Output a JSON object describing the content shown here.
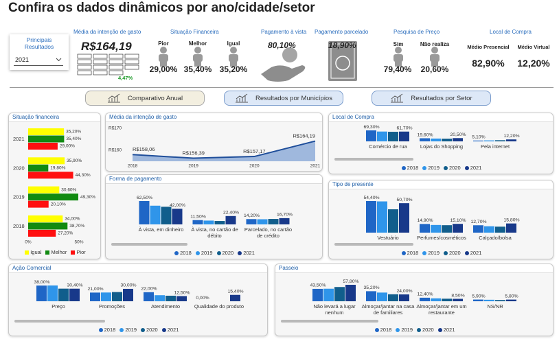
{
  "header": {
    "title": "Confira os dados dinâmicos por ano/cidade/setor"
  },
  "filter": {
    "label": "Principais Resultados",
    "value": "2021"
  },
  "kpis": {
    "gasto": {
      "title": "Média da intenção de gasto",
      "value": "R$164,19",
      "change": "4,47%"
    },
    "situacao": {
      "title": "Situação Financeira",
      "items": [
        {
          "label": "Pior",
          "value": "29,00%"
        },
        {
          "label": "Melhor",
          "value": "35,40%"
        },
        {
          "label": "Igual",
          "value": "35,20%"
        }
      ]
    },
    "avista": {
      "title": "Pagamento à vista",
      "value": "80,10%"
    },
    "parcelado": {
      "title": "Pagamento parcelado",
      "value": "18,90%"
    },
    "pesquisa": {
      "title": "Pesquisa de Preço",
      "items": [
        {
          "label": "Sim",
          "value": "79,40%"
        },
        {
          "label": "Não realiza",
          "value": "20,60%"
        }
      ]
    },
    "local": {
      "title": "Local de Compra",
      "items": [
        {
          "label": "Médio Presencial",
          "value": "82,90%"
        },
        {
          "label": "Médio Virtual",
          "value": "12,20%"
        }
      ]
    }
  },
  "tabs": [
    "Comparativo Anual",
    "Resultados por Municípios",
    "Resultados por Setor"
  ],
  "chart_data": [
    {
      "type": "hbar",
      "title": "Situação financeira",
      "categories": [
        "2021",
        "2020",
        "2019",
        "2018"
      ],
      "series": [
        {
          "name": "Igual",
          "color": "#ffff00",
          "values": [
            35.2,
            35.9,
            30.6,
            34.0
          ],
          "value_labels": [
            "35,20%",
            "35,90%",
            "30,60%",
            "34,00%"
          ]
        },
        {
          "name": "Melhor",
          "color": "#118a11",
          "values": [
            35.4,
            19.8,
            49.3,
            38.7
          ],
          "value_labels": [
            "35,40%",
            "19,80%",
            "49,30%",
            "38,70%"
          ]
        },
        {
          "name": "Pior",
          "color": "#ff1010",
          "values": [
            29.0,
            44.3,
            20.1,
            27.2
          ],
          "value_labels": [
            "29,00%",
            "44,30%",
            "20,10%",
            "27,20%"
          ]
        }
      ],
      "xlim": [
        0,
        50
      ],
      "xticks": [
        {
          "value": 0,
          "label": "0%"
        },
        {
          "value": 50,
          "label": "50%"
        }
      ],
      "legend": "bottom"
    },
    {
      "type": "area",
      "title": "Média da intenção de gasto",
      "categories": [
        "2018",
        "2019",
        "2020",
        "2021"
      ],
      "values": [
        158.06,
        156.39,
        157.17,
        164.19
      ],
      "value_labels": [
        "R$158,06",
        "R$156,39",
        "R$157,17",
        "R$164,19"
      ],
      "ylim": [
        155,
        170
      ],
      "yticks": [
        {
          "value": 160,
          "label": "R$160"
        },
        {
          "value": 170,
          "label": "R$170"
        }
      ],
      "color": "#1f4e9a"
    },
    {
      "type": "bar",
      "title": "Forma de pagamento",
      "categories": [
        "À vista, em dinheiro",
        "À vista, no cartão de débito",
        "Parcelado, no cartão de crédito"
      ],
      "series": [
        {
          "name": "2018",
          "color": "#1f66c6",
          "values": [
            62.5,
            11.5,
            14.2
          ],
          "value_labels": [
            "62,50%",
            "11,50%",
            "14,20%"
          ]
        },
        {
          "name": "2019",
          "color": "#2f95ea",
          "values": [
            50.1,
            10.2,
            13.8
          ]
        },
        {
          "name": "2020",
          "color": "#115e8c",
          "values": [
            47.3,
            9.1,
            14.6
          ]
        },
        {
          "name": "2021",
          "color": "#18398a",
          "values": [
            42.0,
            22.4,
            16.7
          ],
          "value_labels": [
            "42,00%",
            "22,40%",
            "16,70%"
          ]
        }
      ],
      "legend": "bottom"
    },
    {
      "type": "bar",
      "title": "Local de Compra",
      "categories": [
        "Comércio de rua",
        "Lojas do Shopping",
        "Pela internet"
      ],
      "series": [
        {
          "name": "2018",
          "color": "#1f66c6",
          "values": [
            69.3,
            19.6,
            5.1
          ],
          "value_labels": [
            "69,30%",
            "19,60%",
            "5,10%"
          ]
        },
        {
          "name": "2019",
          "color": "#2f95ea",
          "values": [
            62.0,
            17.8,
            6.0
          ]
        },
        {
          "name": "2020",
          "color": "#115e8c",
          "values": [
            60.5,
            17.0,
            7.2
          ]
        },
        {
          "name": "2021",
          "color": "#18398a",
          "values": [
            61.7,
            20.5,
            12.2
          ],
          "value_labels": [
            "61,70%",
            "20,50%",
            "12,20%"
          ]
        }
      ],
      "legend": "bottom"
    },
    {
      "type": "bar",
      "title": "Tipo de presente",
      "categories": [
        "Vestuário",
        "Perfumes/cosméticos",
        "Calçado/bolsa"
      ],
      "series": [
        {
          "name": "2018",
          "color": "#1f66c6",
          "values": [
            54.4,
            14.9,
            12.7
          ],
          "value_labels": [
            "54,40%",
            "14,90%",
            "12,70%"
          ]
        },
        {
          "name": "2019",
          "color": "#2f95ea",
          "values": [
            53.8,
            13.2,
            11.0
          ]
        },
        {
          "name": "2020",
          "color": "#115e8c",
          "values": [
            40.2,
            12.8,
            10.3
          ]
        },
        {
          "name": "2021",
          "color": "#18398a",
          "values": [
            50.7,
            15.1,
            15.8
          ],
          "value_labels": [
            "50,70%",
            "15,10%",
            "15,80%"
          ]
        }
      ],
      "legend": "bottom"
    },
    {
      "type": "bar",
      "title": "Ação Comercial",
      "categories": [
        "Preço",
        "Promoções",
        "Atendimento",
        "Qualidade do produto"
      ],
      "series": [
        {
          "name": "2018",
          "color": "#1f66c6",
          "values": [
            38.0,
            21.0,
            22.0,
            0.0
          ],
          "value_labels": [
            "38,00%",
            "21,00%",
            "22,00%",
            "0,00%"
          ]
        },
        {
          "name": "2019",
          "color": "#2f95ea",
          "values": [
            38.2,
            21.2,
            14.6,
            0.0
          ]
        },
        {
          "name": "2020",
          "color": "#115e8c",
          "values": [
            30.5,
            22.3,
            13.4,
            0.0
          ]
        },
        {
          "name": "2021",
          "color": "#18398a",
          "values": [
            30.4,
            30.0,
            12.5,
            15.4
          ],
          "value_labels": [
            "30,40%",
            "30,00%",
            "12,50%",
            "15,40%"
          ]
        }
      ],
      "legend": "bottom"
    },
    {
      "type": "bar",
      "title": "Passeio",
      "categories": [
        "Não levará a lugar nenhum",
        "Almoçar/jantar na casa de familiares",
        "Almoçar/jantar em um restaurante",
        "NS/NR"
      ],
      "series": [
        {
          "name": "2018",
          "color": "#1f66c6",
          "values": [
            43.5,
            35.2,
            12.4,
            5.9
          ],
          "value_labels": [
            "43,50%",
            "35,20%",
            "12,40%",
            "5,90%"
          ]
        },
        {
          "name": "2019",
          "color": "#2f95ea",
          "values": [
            44.0,
            30.5,
            10.3,
            5.2
          ]
        },
        {
          "name": "2020",
          "color": "#115e8c",
          "values": [
            50.0,
            24.5,
            9.0,
            4.3
          ]
        },
        {
          "name": "2021",
          "color": "#18398a",
          "values": [
            57.8,
            24.0,
            8.5,
            5.8
          ],
          "value_labels": [
            "57,80%",
            "24,00%",
            "8,50%",
            "5,80%"
          ]
        }
      ],
      "legend": "bottom"
    }
  ]
}
